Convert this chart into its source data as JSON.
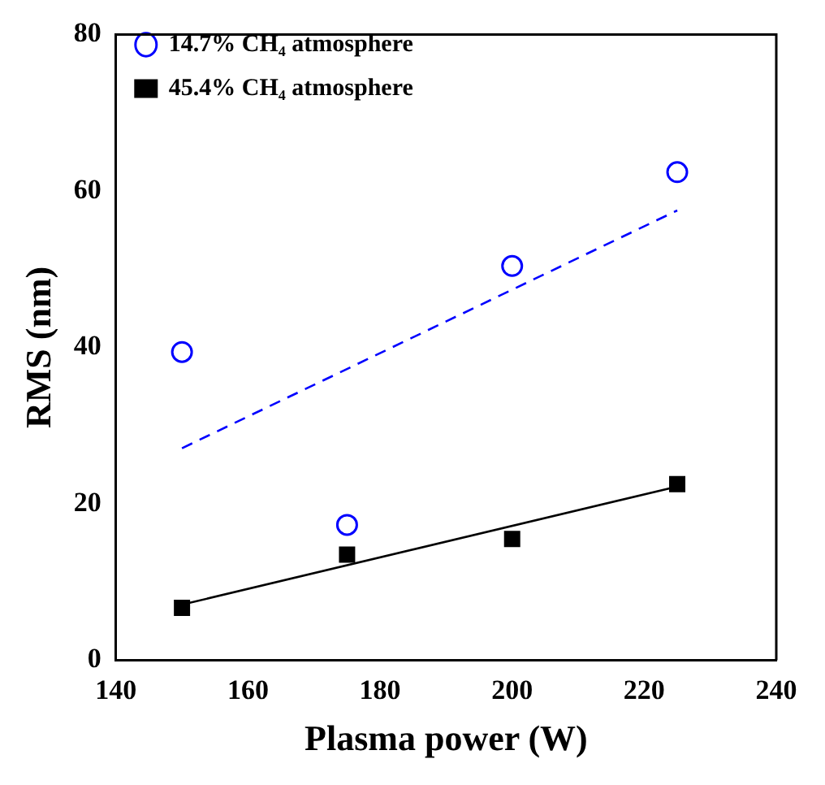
{
  "chart_data": {
    "type": "scatter",
    "xlabel": "Plasma power (W)",
    "ylabel": "RMS (nm)",
    "xlim": [
      140,
      240
    ],
    "xticks": [
      140,
      160,
      180,
      200,
      220,
      240
    ],
    "ylim": [
      0,
      80
    ],
    "yticks": [
      0,
      20,
      40,
      60,
      80
    ],
    "legend": "top left",
    "grid": false,
    "series": [
      {
        "name": "14.7% CH₄ atmosphere",
        "color": "#0000ff",
        "marker": "circle",
        "x": [
          150,
          175,
          200,
          225
        ],
        "values": [
          39.4,
          17.3,
          50.4,
          62.4
        ]
      },
      {
        "name": "45.4% CH₄ atmosphere",
        "color": "#000000",
        "marker": "square",
        "x": [
          150,
          175,
          200,
          225
        ],
        "values": [
          6.7,
          13.5,
          15.5,
          22.5
        ]
      },
      {
        "type": "line",
        "color": "#0000ff",
        "marker": "none",
        "line_style": "dashed",
        "x": [
          150,
          225
        ],
        "values": [
          27.1,
          57.5
        ]
      },
      {
        "type": "line",
        "color": "#000000",
        "marker": "none",
        "line_style": "solid",
        "x": [
          150,
          225
        ],
        "values": [
          7.1,
          22.2
        ]
      }
    ]
  }
}
